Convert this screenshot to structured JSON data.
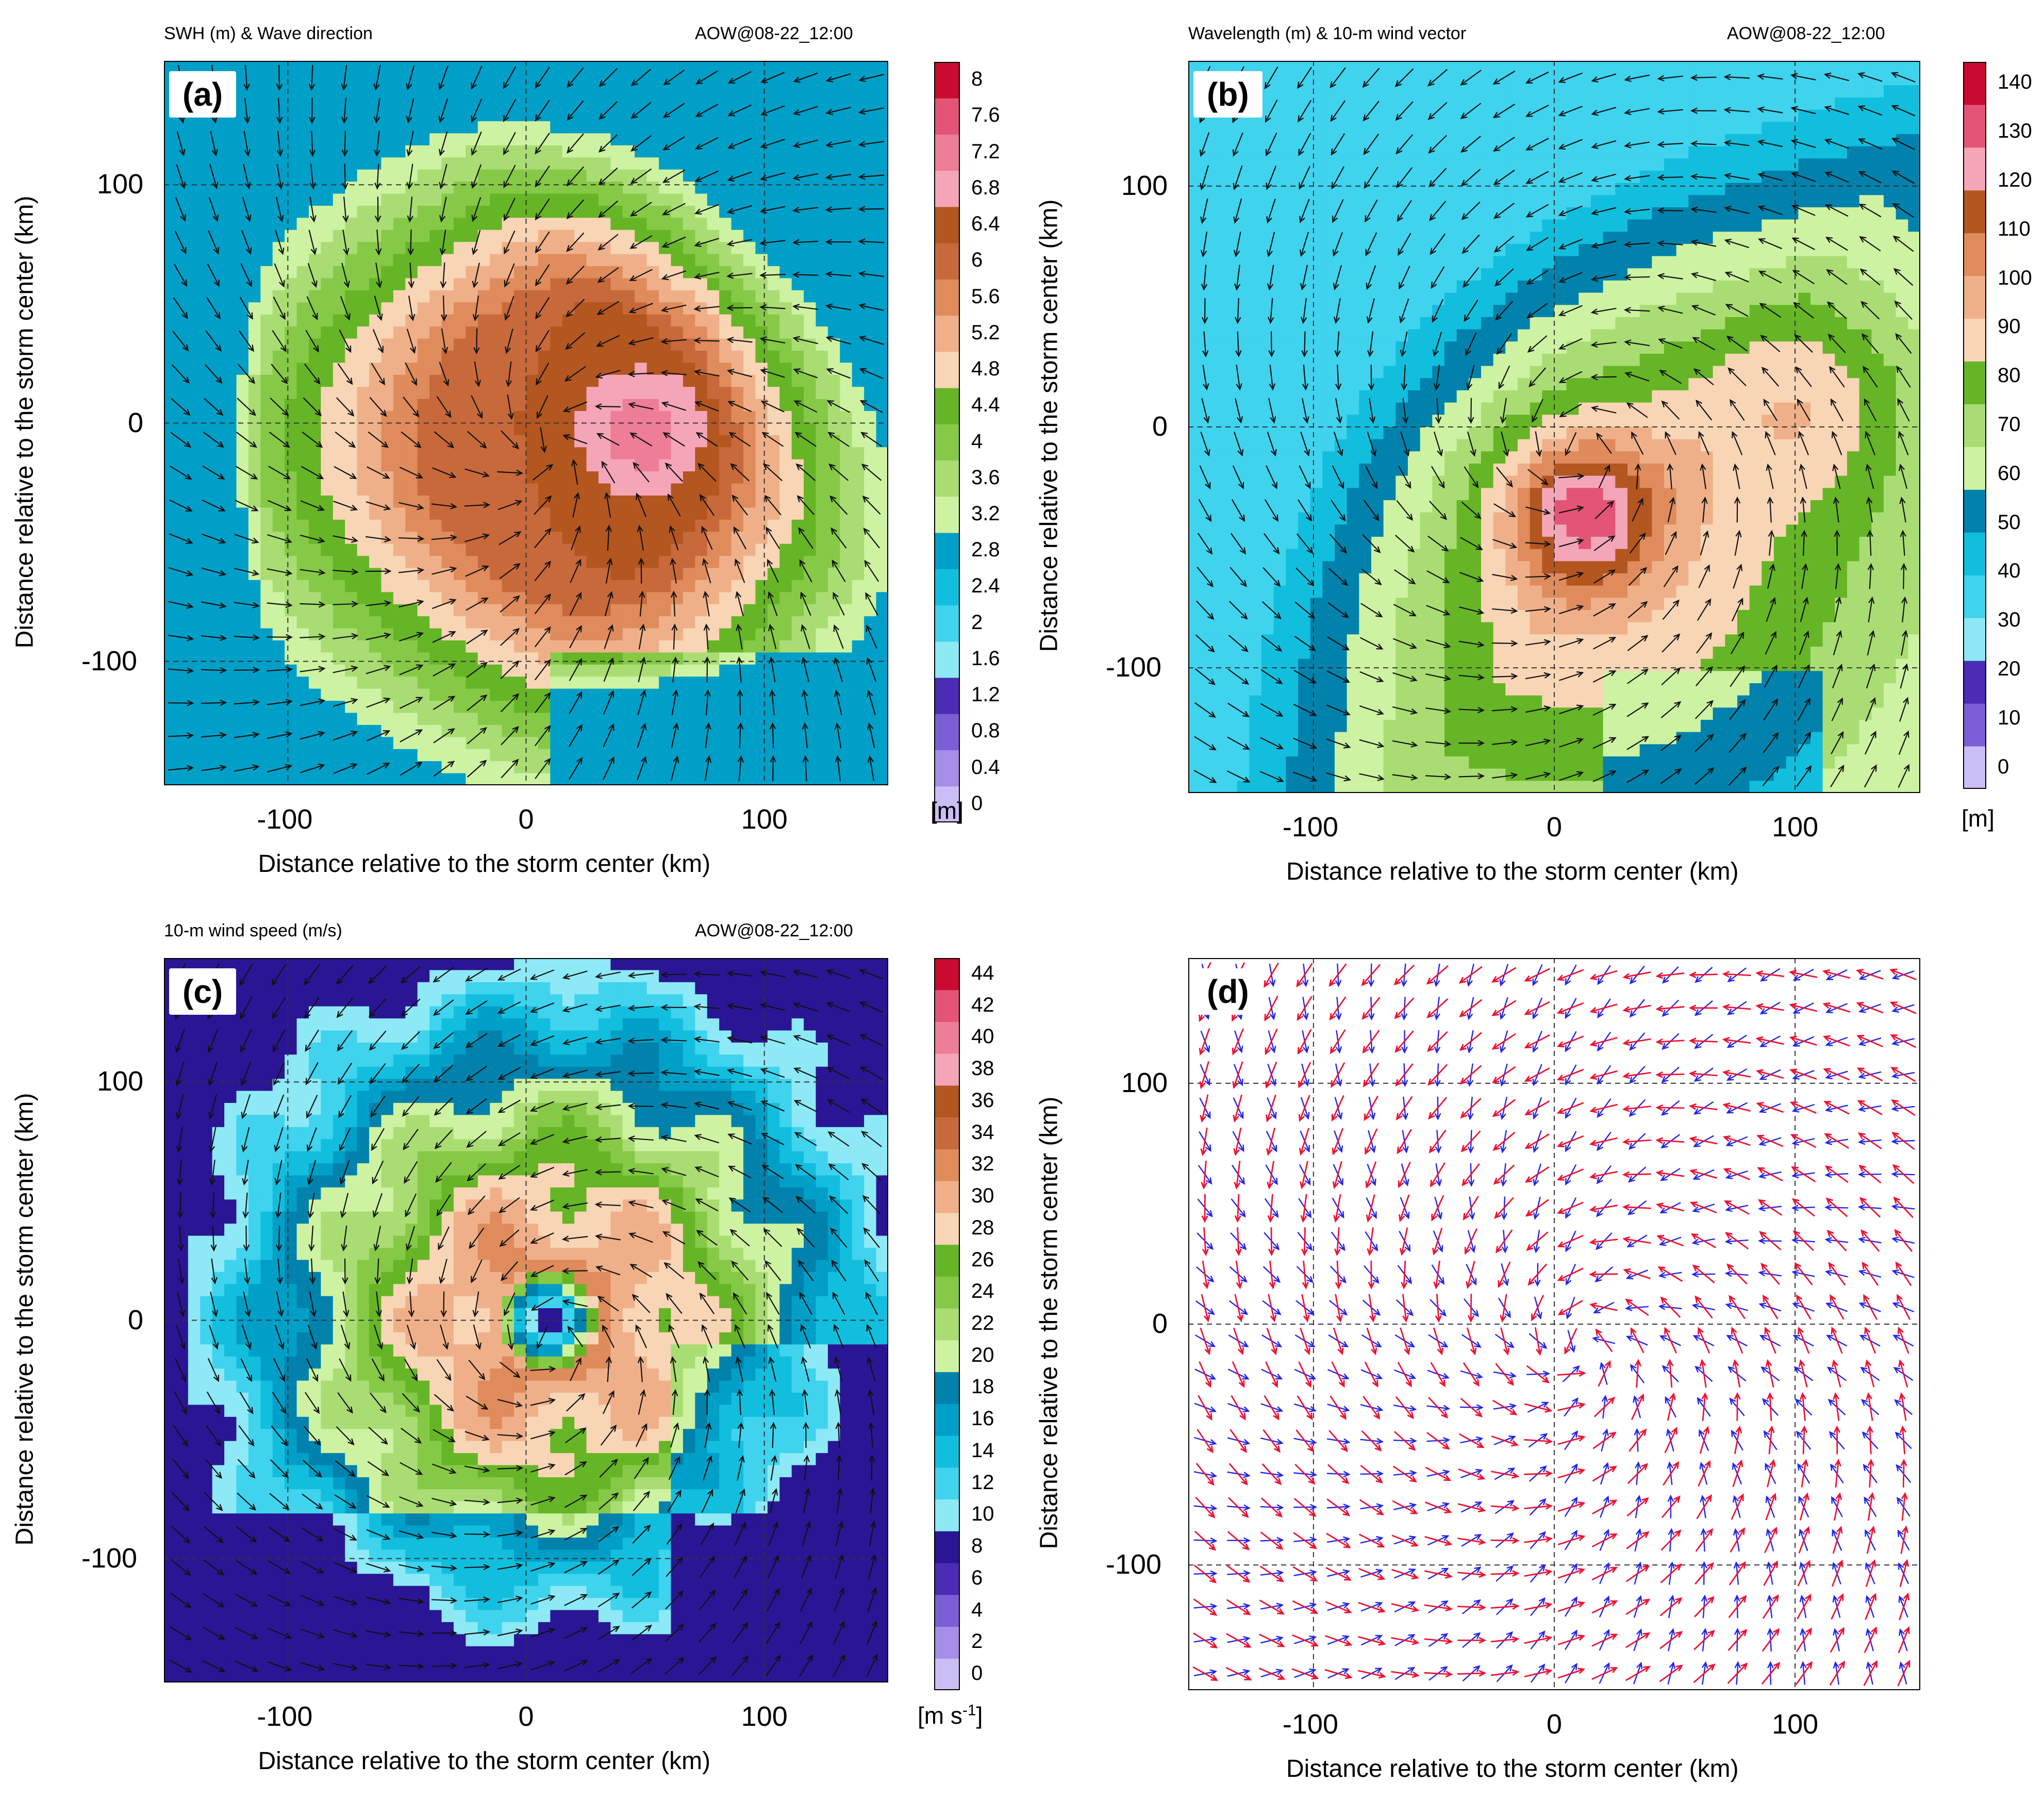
{
  "chart_data": [
    {
      "panel": "(a)",
      "type": "heatmap",
      "title_left": "SWH (m) & Wave direction",
      "title_right": "AOW@08-22_12:00",
      "xlabel": "Distance relative to the storm center (km)",
      "ylabel": "Distance relative to the storm center (km)",
      "xlim": [
        -152,
        152
      ],
      "ylim": [
        -152,
        152
      ],
      "xticks": [
        "-100",
        "0",
        "100"
      ],
      "yticks": [
        "100",
        "0",
        "-100"
      ],
      "colorbar": {
        "unit": "[m]",
        "ticks": [
          "0",
          "0.4",
          "0.8",
          "1.2",
          "1.6",
          "2",
          "2.4",
          "2.8",
          "3.2",
          "3.6",
          "4",
          "4.4",
          "4.8",
          "5.2",
          "5.6",
          "6",
          "6.4",
          "6.8",
          "7.2",
          "7.6",
          "8"
        ],
        "colors": [
          "#cbbdf5",
          "#a58ee8",
          "#7b5fd6",
          "#4b2db5",
          "#2a1694",
          "#8de9f5",
          "#3fd3ee",
          "#12bedd",
          "#009fc7",
          "#0082ac",
          "#00698f",
          "#cdf2a2",
          "#a9dd73",
          "#86c947",
          "#66b526",
          "#f8d5b5",
          "#efb089",
          "#df8b5c",
          "#c8693c",
          "#b45620",
          "#f4a6b8",
          "#ee7d98",
          "#e45476",
          "#d72c53",
          "#c80b2f"
        ],
        "levels_shown": "0–8 m in steps of 0.4"
      },
      "vectors": "wave direction arrows on regular grid, converging cyclonically around center",
      "max_region": "6.8–7.2 m pink crescent east of center (~+50 km, -10 km)"
    },
    {
      "panel": "(b)",
      "type": "heatmap",
      "title_left": "Wavelength (m) & 10-m wind vector",
      "title_right": "AOW@08-22_12:00",
      "xlabel": "Distance relative to the storm center (km)",
      "ylabel": "Distance relative to the storm center (km)",
      "xlim": [
        -152,
        152
      ],
      "ylim": [
        -152,
        152
      ],
      "xticks": [
        "-100",
        "0",
        "100"
      ],
      "yticks": [
        "100",
        "0",
        "-100"
      ],
      "colorbar": {
        "unit": "[m]",
        "ticks": [
          "0",
          "10",
          "20",
          "30",
          "40",
          "50",
          "60",
          "70",
          "80",
          "90",
          "100",
          "110",
          "120",
          "130",
          "140"
        ]
      },
      "vectors": "10-m wind vectors",
      "max_region": ">130 m red core near (+10 km, -35 km)"
    },
    {
      "panel": "(c)",
      "type": "heatmap",
      "title_left": "10-m wind speed (m/s)",
      "title_right": "AOW@08-22_12:00",
      "xlabel": "Distance relative to the storm center (km)",
      "ylabel": "Distance relative to the storm center (km)",
      "xlim": [
        -152,
        152
      ],
      "ylim": [
        -152,
        152
      ],
      "xticks": [
        "-100",
        "0",
        "100"
      ],
      "yticks": [
        "100",
        "0",
        "-100"
      ],
      "colorbar": {
        "unit": "[m s",
        "unit_sup": "-1",
        "unit_end": "]",
        "ticks": [
          "0",
          "2",
          "4",
          "6",
          "8",
          "10",
          "12",
          "14",
          "16",
          "18",
          "20",
          "22",
          "24",
          "26",
          "28",
          "30",
          "32",
          "34",
          "36",
          "38",
          "40",
          "42",
          "44"
        ]
      },
      "vectors": "10-m wind vectors",
      "max_region": "eye (<8 m/s) near (+10 km, 0 km) surrounded by 30–38 m/s ring"
    },
    {
      "panel": "(d)",
      "type": "scatter",
      "xlabel": "Distance relative to the storm center (km)",
      "ylabel": "Distance relative to the storm center (km)",
      "xlim": [
        -152,
        152
      ],
      "ylim": [
        -152,
        152
      ],
      "xticks": [
        "-100",
        "0",
        "100"
      ],
      "yticks": [
        "100",
        "0",
        "-100"
      ],
      "series": [
        {
          "color": "#ff1a1a",
          "values": "wind vectors (red arrows), cyclonic rotation"
        },
        {
          "color": "#1a1aff",
          "values": "wave direction vectors (blue arrows)"
        }
      ]
    }
  ]
}
